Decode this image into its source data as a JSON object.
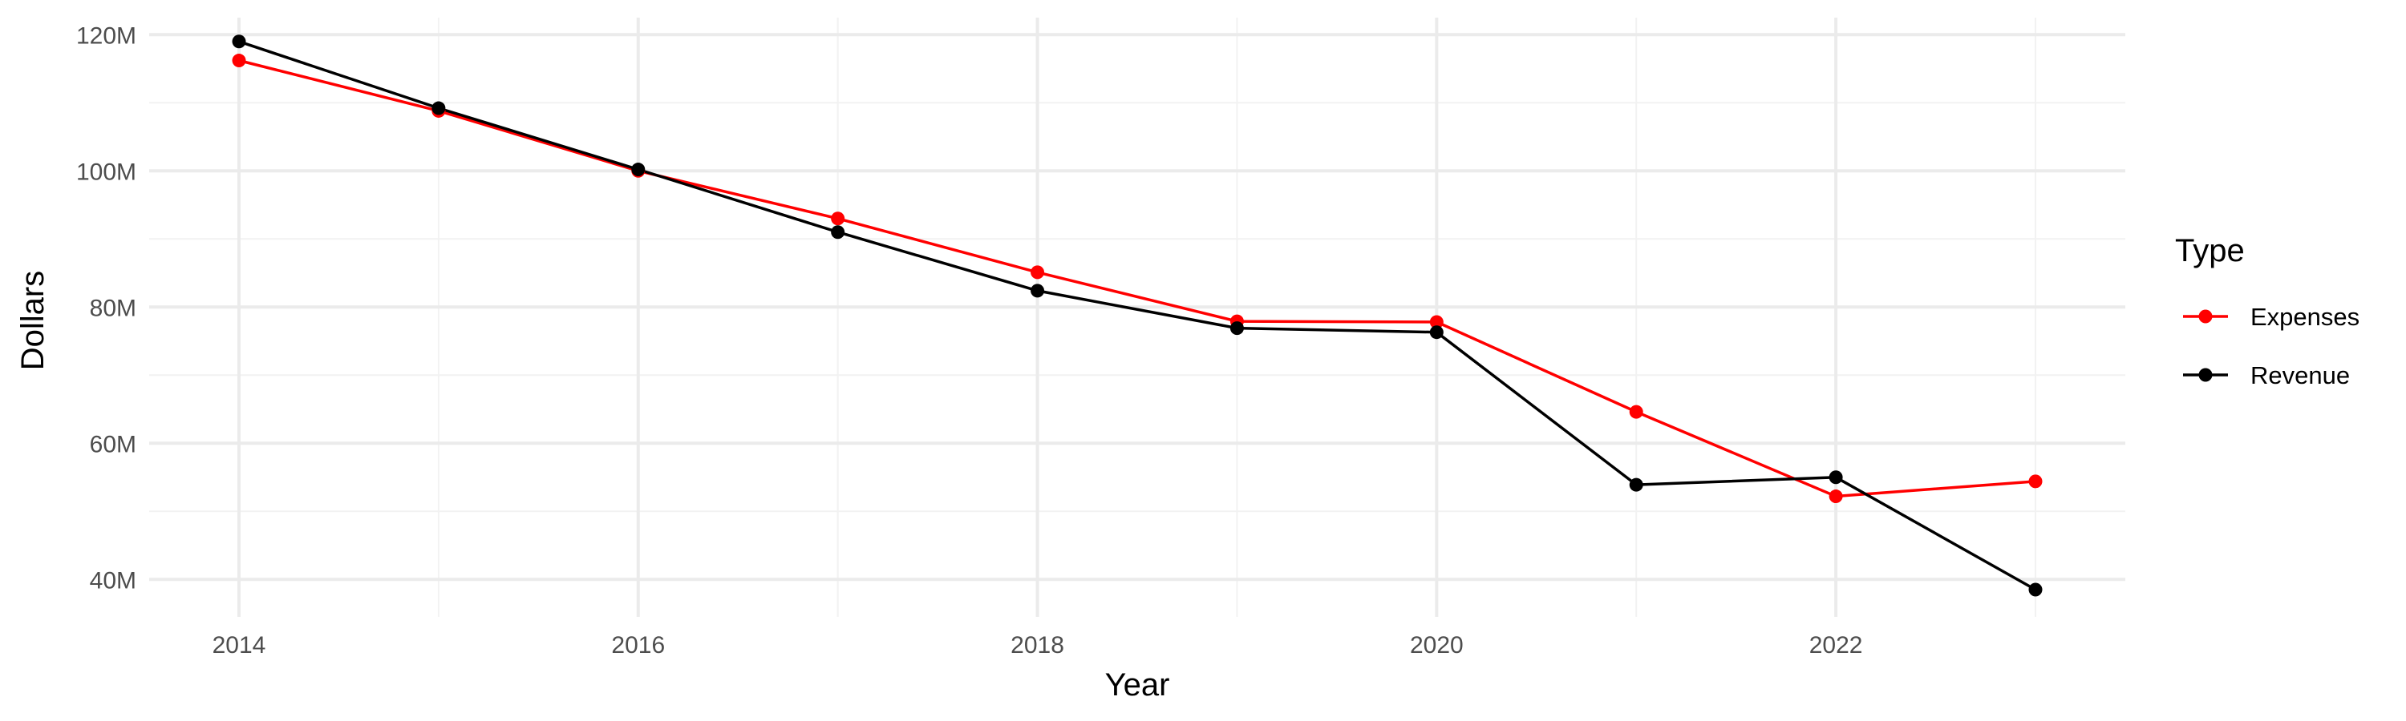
{
  "chart_data": {
    "type": "line",
    "title": "",
    "xlabel": "Year",
    "ylabel": "Dollars",
    "x": [
      2014,
      2015,
      2016,
      2017,
      2018,
      2019,
      2020,
      2021,
      2022,
      2023
    ],
    "xlim": [
      2013.55,
      2023.45
    ],
    "ylim": [
      34500000,
      122500000
    ],
    "x_ticks": [
      2014,
      2016,
      2018,
      2020,
      2022
    ],
    "x_tick_labels": [
      "2014",
      "2016",
      "2018",
      "2020",
      "2022"
    ],
    "y_ticks": [
      40000000,
      60000000,
      80000000,
      100000000,
      120000000
    ],
    "y_tick_labels": [
      "40M",
      "60M",
      "80M",
      "100M",
      "120M"
    ],
    "grid": true,
    "legend": {
      "title": "Type",
      "position": "right"
    },
    "series": [
      {
        "name": "Expenses",
        "color": "#ff0000",
        "values": [
          116200000,
          108800000,
          100000000,
          93000000,
          85100000,
          77900000,
          77800000,
          64600000,
          52200000,
          54400000
        ]
      },
      {
        "name": "Revenue",
        "color": "#000000",
        "values": [
          119000000,
          109200000,
          100200000,
          91000000,
          82400000,
          76900000,
          76300000,
          53900000,
          55000000,
          38500000
        ]
      }
    ]
  }
}
